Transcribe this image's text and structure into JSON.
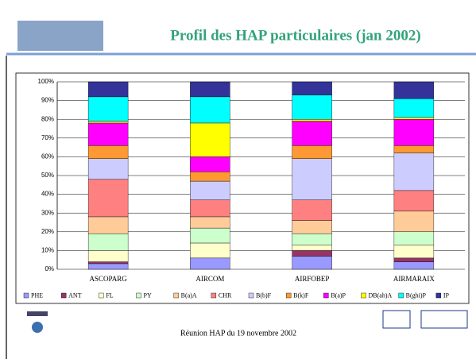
{
  "chart_data": {
    "type": "stacked_bar_100",
    "title": "Profil des HAP particulaires (jan 2002)",
    "categories": [
      "ASCOPARG",
      "AIRCOM",
      "AIRFOBEP",
      "AIRMARAIX"
    ],
    "series": [
      {
        "name": "PHE",
        "color": "#9999ff",
        "values": [
          3,
          6,
          7,
          4
        ]
      },
      {
        "name": "ANT",
        "color": "#993366",
        "values": [
          1,
          0,
          3,
          2
        ]
      },
      {
        "name": "FL",
        "color": "#ffffcc",
        "values": [
          6,
          8,
          3,
          7
        ]
      },
      {
        "name": "PY",
        "color": "#ccffcc",
        "values": [
          9,
          8,
          6,
          7
        ]
      },
      {
        "name": "B(a)A",
        "color": "#ffcc99",
        "values": [
          9,
          6,
          7,
          11
        ]
      },
      {
        "name": "CHR",
        "color": "#ff8080",
        "values": [
          20,
          9,
          11,
          11
        ]
      },
      {
        "name": "B(b)F",
        "color": "#ccccff",
        "values": [
          11,
          10,
          22,
          20
        ]
      },
      {
        "name": "B(k)F",
        "color": "#ff9933",
        "values": [
          7,
          5,
          7,
          4
        ]
      },
      {
        "name": "B(a)P",
        "color": "#ff00ff",
        "values": [
          12,
          8,
          13,
          14
        ]
      },
      {
        "name": "DB(ah)A",
        "color": "#ffff00",
        "values": [
          1,
          18,
          1,
          1
        ]
      },
      {
        "name": "B(ghi)P",
        "color": "#00ffff",
        "values": [
          13,
          14,
          13,
          10
        ]
      },
      {
        "name": "IP",
        "color": "#333399",
        "values": [
          8,
          8,
          7,
          9
        ]
      }
    ],
    "ylim": [
      0,
      100
    ],
    "yticks": [
      {
        "value": 0,
        "label": "0%"
      },
      {
        "value": 10,
        "label": "10%"
      },
      {
        "value": 20,
        "label": "20%"
      },
      {
        "value": 30,
        "label": "30%"
      },
      {
        "value": 40,
        "label": "40%"
      },
      {
        "value": 50,
        "label": "50%"
      },
      {
        "value": 60,
        "label": "60%"
      },
      {
        "value": 70,
        "label": "70%"
      },
      {
        "value": 80,
        "label": "80%"
      },
      {
        "value": 90,
        "label": "90%"
      },
      {
        "value": 100,
        "label": "100%"
      }
    ],
    "grid": true,
    "legend": "bottom"
  },
  "footer": "Réunion HAP du 19 novembre 2002"
}
